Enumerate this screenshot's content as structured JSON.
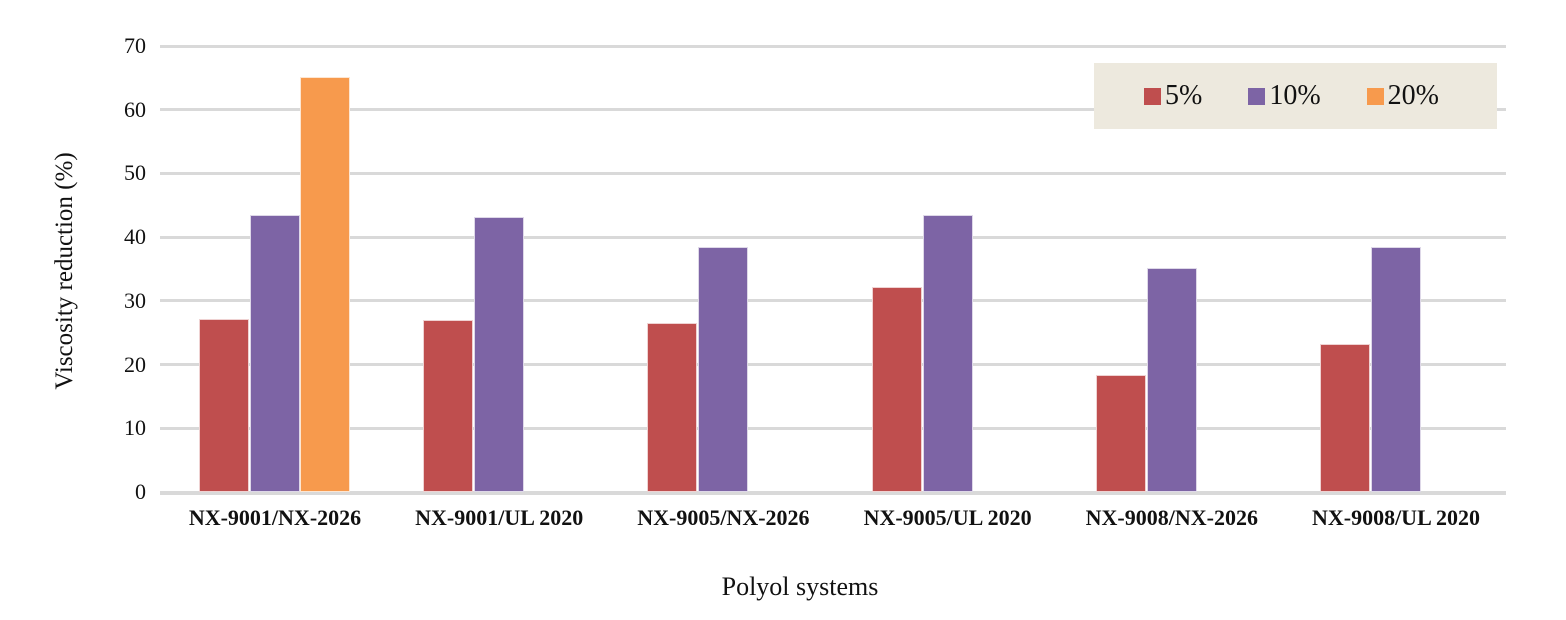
{
  "chart_data": {
    "type": "bar",
    "title": "",
    "xlabel": "Polyol systems",
    "ylabel": "Viscosity reduction (%)",
    "ylim": [
      0,
      70
    ],
    "yticks": [
      0,
      10,
      20,
      30,
      40,
      50,
      60,
      70
    ],
    "grid": "horizontal",
    "legend_position": "top-right",
    "categories": [
      "NX-9001/NX-2026",
      "NX-9001/UL 2020",
      "NX-9005/NX-2026",
      "NX-9005/UL 2020",
      "NX-9008/NX-2026",
      "NX-9008/UL 2020"
    ],
    "series": [
      {
        "name": "5%",
        "color": "#BF4E4E",
        "values": [
          27.2,
          27.0,
          26.5,
          32.1,
          18.4,
          23.2
        ]
      },
      {
        "name": "10%",
        "color": "#7D64A5",
        "values": [
          43.4,
          43.1,
          38.5,
          43.5,
          35.2,
          38.5
        ]
      },
      {
        "name": "20%",
        "color": "#F79A4D",
        "values": [
          65.2,
          null,
          null,
          null,
          null,
          null
        ]
      }
    ]
  },
  "colors": {
    "gridline": "#D9D9D9",
    "legend_background": "#EDE9DE",
    "text": "#111111"
  }
}
